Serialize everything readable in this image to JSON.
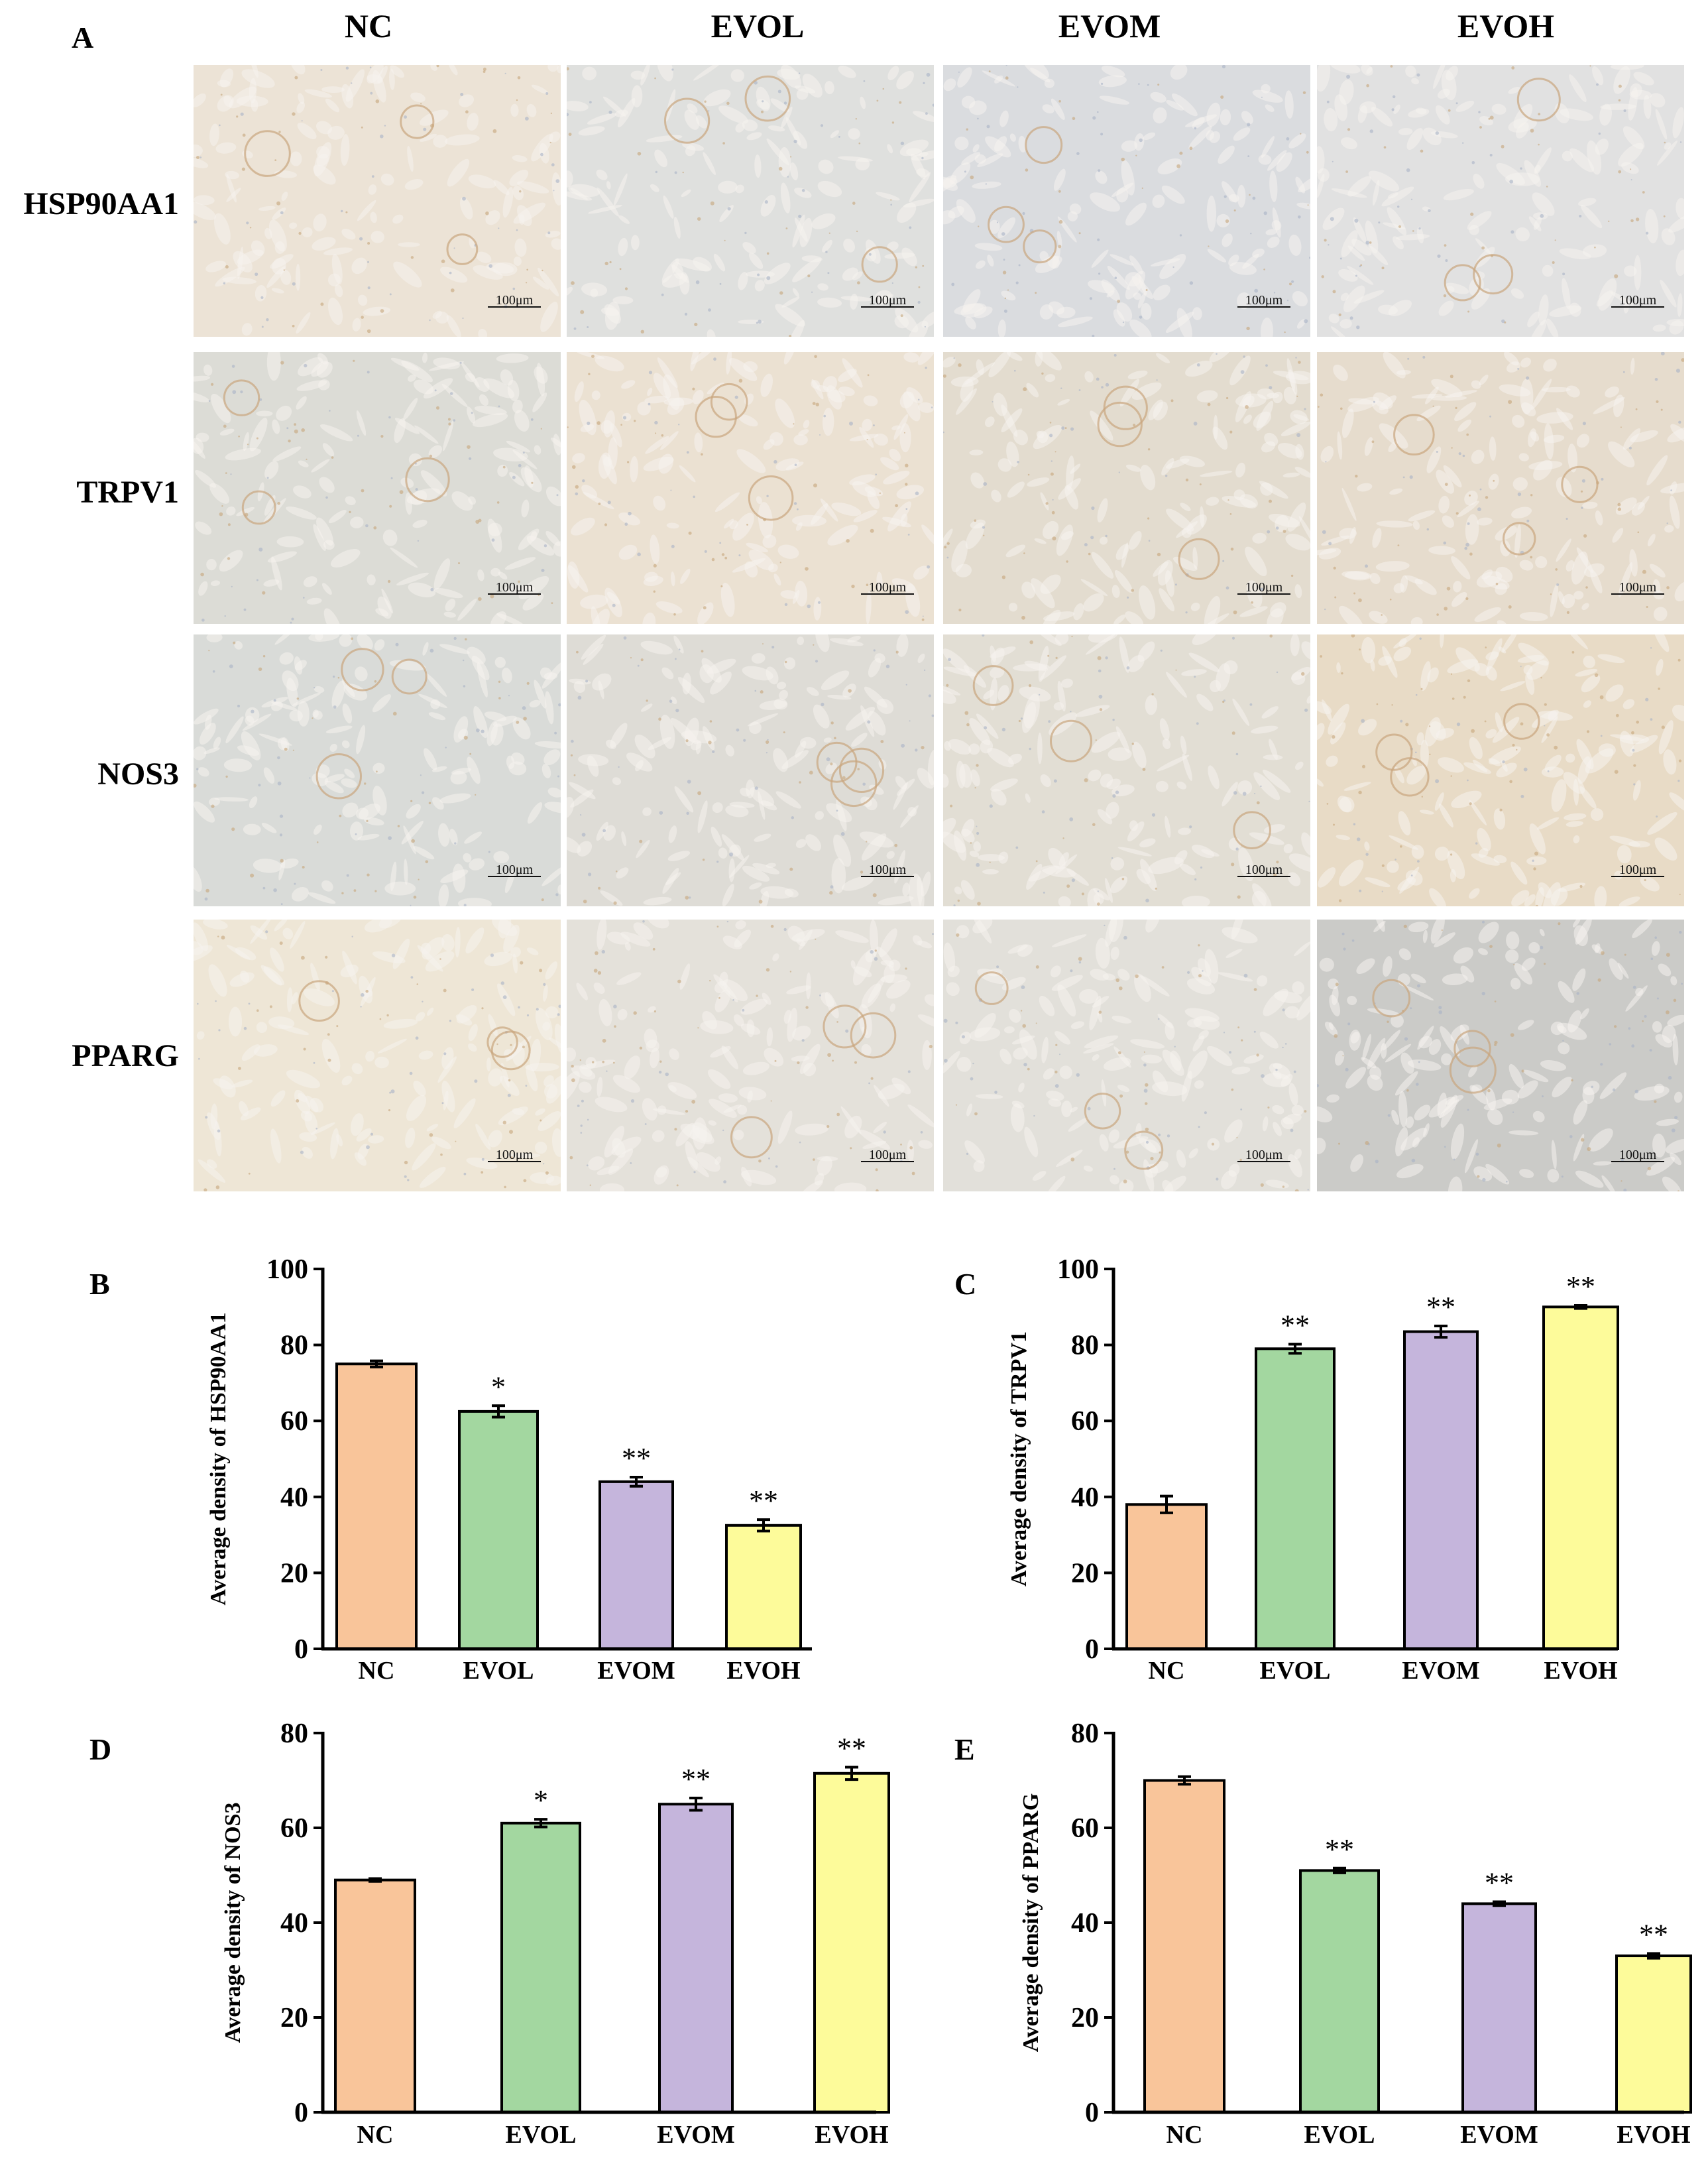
{
  "panel_a": {
    "letter": "A",
    "columns": [
      "NC",
      "EVOL",
      "EVOM",
      "EVOH"
    ],
    "rows": [
      "HSP90AA1",
      "TRPV1",
      "NOS3",
      "PPARG"
    ],
    "scale_bar": "100μm",
    "colors": {
      "HSP90AA1": [
        "#ece3d6",
        "#dfe0de",
        "#dadcdf",
        "#e1e1e1"
      ],
      "TRPV1": [
        "#dcdcd6",
        "#ebe1d2",
        "#e3dccf",
        "#e6dccd"
      ],
      "NOS3": [
        "#d9dbd8",
        "#dedcd6",
        "#e2ded4",
        "#e8dbc6"
      ],
      "PPARG": [
        "#eee6d6",
        "#e4e1da",
        "#e2e0da",
        "#cbcbc8"
      ]
    }
  },
  "chart_data": [
    {
      "letter": "B",
      "type": "bar",
      "ylabel": "Average density of HSP90AA1",
      "categories": [
        "NC",
        "EVOL",
        "EVOM",
        "EVOH"
      ],
      "values": [
        75,
        62.5,
        44,
        32.5
      ],
      "errors": [
        0.8,
        1.5,
        1.2,
        1.5
      ],
      "significance": [
        "",
        "*",
        "**",
        "**"
      ],
      "ylim": [
        0,
        100
      ],
      "yticks": [
        0,
        20,
        40,
        60,
        80,
        100
      ],
      "colors": [
        "#f9c59a",
        "#a3d7a0",
        "#c5b5dc",
        "#fdfb9a"
      ]
    },
    {
      "letter": "C",
      "type": "bar",
      "ylabel": "Average density of TRPV1",
      "categories": [
        "NC",
        "EVOL",
        "EVOM",
        "EVOH"
      ],
      "values": [
        38,
        79,
        83.5,
        90
      ],
      "errors": [
        2.2,
        1.2,
        1.5,
        0.4
      ],
      "significance": [
        "",
        "**",
        "**",
        "**"
      ],
      "ylim": [
        0,
        100
      ],
      "yticks": [
        0,
        20,
        40,
        60,
        80,
        100
      ],
      "colors": [
        "#f9c59a",
        "#a3d7a0",
        "#c5b5dc",
        "#fdfb9a"
      ]
    },
    {
      "letter": "D",
      "type": "bar",
      "ylabel": "Average density of NOS3",
      "categories": [
        "NC",
        "EVOL",
        "EVOM",
        "EVOH"
      ],
      "values": [
        49,
        61,
        65,
        71.5
      ],
      "errors": [
        0.3,
        0.8,
        1.3,
        1.3
      ],
      "significance": [
        "",
        "*",
        "**",
        "**"
      ],
      "ylim": [
        0,
        80
      ],
      "yticks": [
        0,
        20,
        40,
        60,
        80
      ],
      "colors": [
        "#f9c59a",
        "#a3d7a0",
        "#c5b5dc",
        "#fdfb9a"
      ]
    },
    {
      "letter": "E",
      "type": "bar",
      "ylabel": "Average density of PPARG",
      "categories": [
        "NC",
        "EVOL",
        "EVOM",
        "EVOH"
      ],
      "values": [
        70,
        51,
        44,
        33
      ],
      "errors": [
        0.8,
        0.5,
        0.4,
        0.5
      ],
      "significance": [
        "",
        "**",
        "**",
        "**"
      ],
      "ylim": [
        0,
        80
      ],
      "yticks": [
        0,
        20,
        40,
        60,
        80
      ],
      "colors": [
        "#f9c59a",
        "#a3d7a0",
        "#c5b5dc",
        "#fdfb9a"
      ]
    }
  ]
}
